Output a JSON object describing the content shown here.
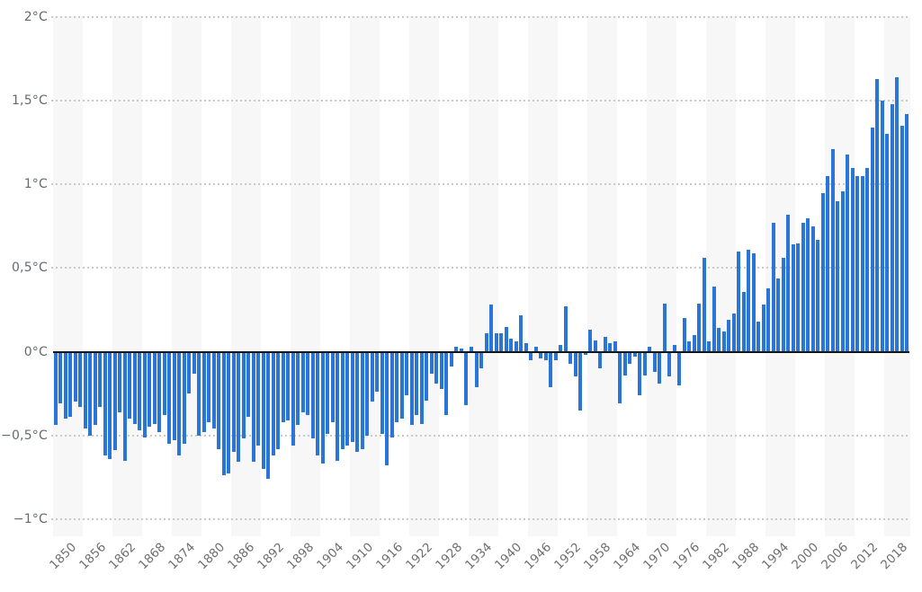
{
  "chart_data": {
    "type": "bar",
    "description": "Annual global land surface temperature anomalies in degrees Celsius, shown as vertical bars per year",
    "unit": "°C",
    "year_start": 1850,
    "year_end": 2022,
    "series": [
      {
        "name": "Temperature anomaly",
        "values": [
          -0.44,
          -0.31,
          -0.4,
          -0.39,
          -0.3,
          -0.33,
          -0.46,
          -0.5,
          -0.44,
          -0.33,
          -0.62,
          -0.64,
          -0.59,
          -0.36,
          -0.65,
          -0.4,
          -0.43,
          -0.47,
          -0.51,
          -0.45,
          -0.43,
          -0.48,
          -0.38,
          -0.55,
          -0.53,
          -0.62,
          -0.55,
          -0.25,
          -0.13,
          -0.5,
          -0.48,
          -0.42,
          -0.46,
          -0.58,
          -0.74,
          -0.73,
          -0.6,
          -0.66,
          -0.52,
          -0.39,
          -0.66,
          -0.56,
          -0.7,
          -0.76,
          -0.62,
          -0.58,
          -0.42,
          -0.41,
          -0.56,
          -0.44,
          -0.36,
          -0.38,
          -0.52,
          -0.62,
          -0.67,
          -0.49,
          -0.42,
          -0.65,
          -0.58,
          -0.56,
          -0.54,
          -0.6,
          -0.58,
          -0.5,
          -0.3,
          -0.24,
          -0.49,
          -0.68,
          -0.51,
          -0.42,
          -0.4,
          -0.26,
          -0.44,
          -0.38,
          -0.43,
          -0.29,
          -0.13,
          -0.19,
          -0.22,
          -0.38,
          -0.09,
          0.03,
          0.02,
          -0.32,
          0.03,
          -0.21,
          -0.1,
          0.11,
          0.28,
          0.11,
          0.11,
          0.15,
          0.08,
          0.06,
          0.22,
          0.05,
          -0.05,
          0.03,
          -0.04,
          -0.05,
          -0.21,
          -0.05,
          0.04,
          0.27,
          -0.07,
          -0.15,
          -0.35,
          -0.02,
          0.13,
          0.07,
          -0.1,
          0.09,
          0.05,
          0.06,
          -0.31,
          -0.14,
          -0.07,
          -0.03,
          -0.26,
          -0.14,
          0.03,
          -0.12,
          -0.19,
          0.29,
          -0.15,
          0.04,
          -0.2,
          0.2,
          0.06,
          0.1,
          0.29,
          0.56,
          0.06,
          0.39,
          0.14,
          0.12,
          0.19,
          0.23,
          0.6,
          0.36,
          0.61,
          0.59,
          0.18,
          0.28,
          0.38,
          0.77,
          0.44,
          0.56,
          0.82,
          0.64,
          0.65,
          0.77,
          0.8,
          0.75,
          0.67,
          0.95,
          1.05,
          1.21,
          0.9,
          0.96,
          1.18,
          1.1,
          1.05,
          1.05,
          1.1,
          1.34,
          1.63,
          1.5,
          1.3,
          1.48,
          1.64,
          1.35,
          1.42
        ]
      }
    ],
    "x_tick_labels": [
      "1850",
      "1856",
      "1862",
      "1868",
      "1874",
      "1880",
      "1886",
      "1892",
      "1898",
      "1904",
      "1910",
      "1916",
      "1922",
      "1928",
      "1934",
      "1940",
      "1946",
      "1952",
      "1958",
      "1964",
      "1970",
      "1976",
      "1982",
      "1988",
      "1994",
      "2000",
      "2006",
      "2012",
      "2018"
    ],
    "y_tick_labels": [
      "2°C",
      "1,5°C",
      "1°C",
      "0,5°C",
      "0°C",
      "−0,5°C",
      "−1°C"
    ],
    "y_tick_values": [
      2,
      1.5,
      1,
      0.5,
      0,
      -0.5,
      -1
    ],
    "ylim": [
      -1,
      2
    ],
    "grid": "dotted horizontal lines at every 0.5°C, solid black zero line",
    "legend_position": "none",
    "background_stripes": "alternating 6-year light gray vertical bands",
    "colors": {
      "bar": "#2a75d8",
      "zero_line": "#141414",
      "gridline": "#c9c9c9",
      "stripe": "#f7f7f7",
      "y_label": "#666a6e",
      "x_label": "#6f6f6f",
      "background": "#ffffff"
    }
  }
}
